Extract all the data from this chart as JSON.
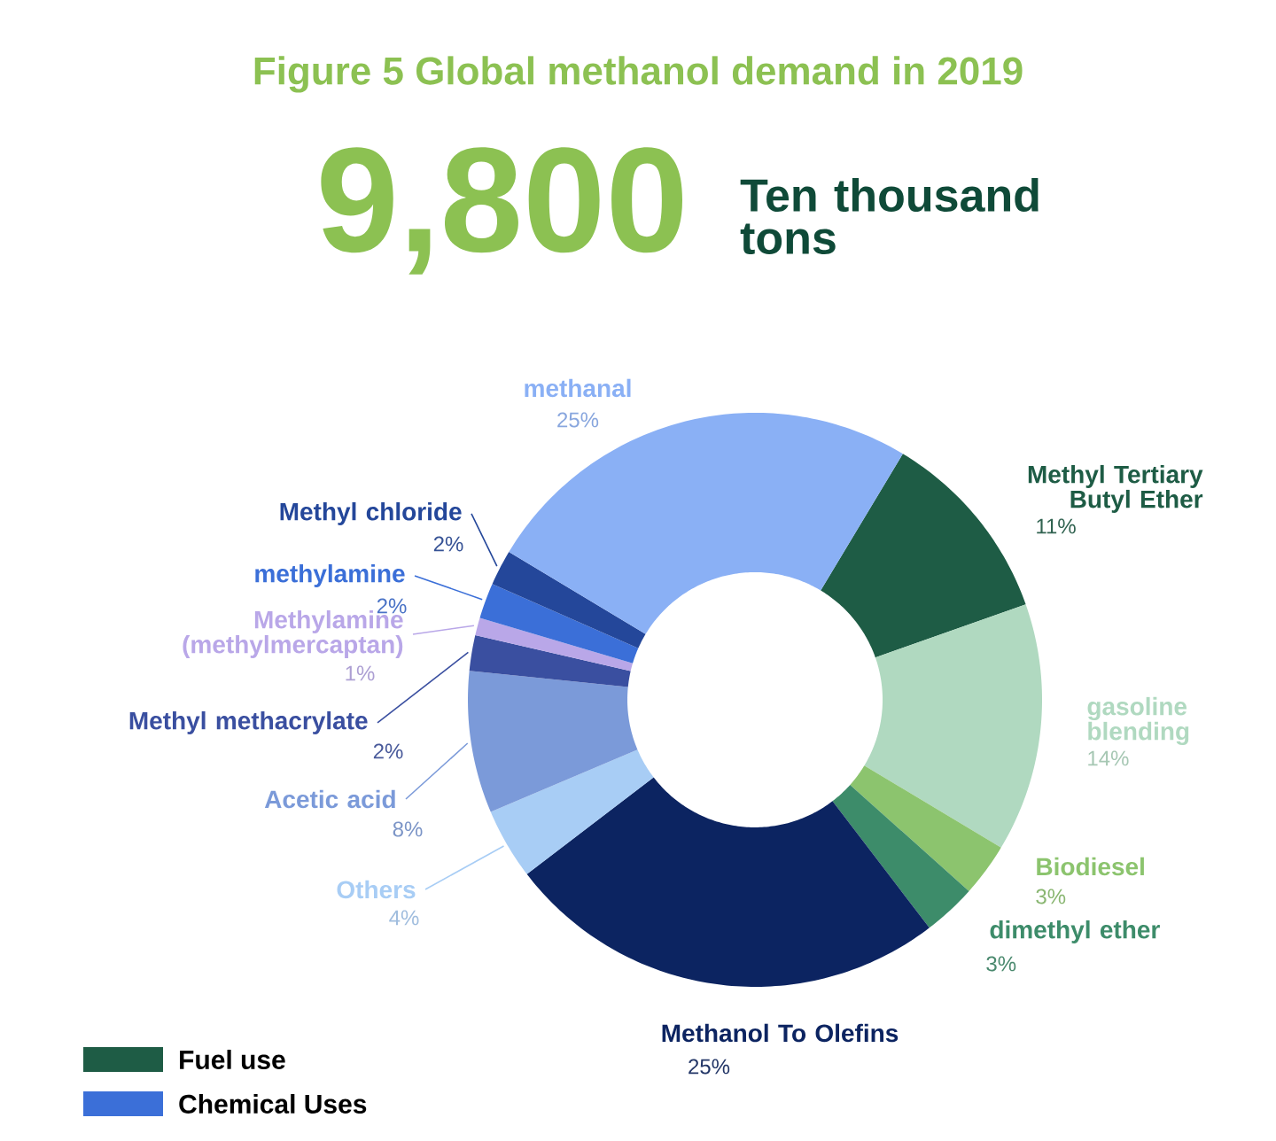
{
  "chart_data": {
    "type": "donut",
    "title": "Figure 5 Global methanol demand in 2019",
    "categories": [
      "Methyl Tertiary Butyl Ether",
      "gasoline blending",
      "Biodiesel",
      "dimethyl ether",
      "Methanol To Olefins",
      "Others",
      "Acetic acid",
      "Methyl methacrylate",
      "Methylamine (methylmercaptan)",
      "methylamine",
      "Methyl chloride",
      "methanal"
    ],
    "values": [
      11,
      14,
      3,
      3,
      25,
      4,
      8,
      2,
      1,
      2,
      2,
      25
    ],
    "value_labels": [
      "11%",
      "14%",
      "3%",
      "3%",
      "25%",
      "4%",
      "8%",
      "2%",
      "1%",
      "2%",
      "2%",
      "25%"
    ],
    "colors": [
      "#1e5c45",
      "#b0d9c0",
      "#8cc46e",
      "#3d8c6a",
      "#0c2461",
      "#a8cdf5",
      "#7b9ad9",
      "#3a4fa0",
      "#b9a7e8",
      "#3b6fd8",
      "#24479a",
      "#8ab0f5"
    ],
    "annotations": [
      "9,800",
      "Ten thousand tons",
      "Fuel use",
      "Chemical Uses"
    ]
  }
}
